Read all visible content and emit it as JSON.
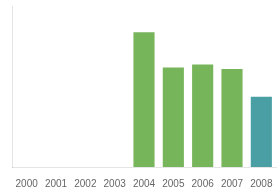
{
  "chart_data": {
    "type": "bar",
    "categories": [
      "2000",
      "2001",
      "2002",
      "2003",
      "2004",
      "2005",
      "2006",
      "2007",
      "2008"
    ],
    "values": [
      0,
      0,
      0,
      0,
      92,
      68,
      70,
      67,
      48
    ],
    "colors": [
      "#77b55a",
      "#77b55a",
      "#77b55a",
      "#77b55a",
      "#77b55a",
      "#77b55a",
      "#77b55a",
      "#77b55a",
      "#4a9fa5"
    ],
    "ylim": [
      0,
      110
    ],
    "grid": false,
    "tick_labels": "x"
  }
}
